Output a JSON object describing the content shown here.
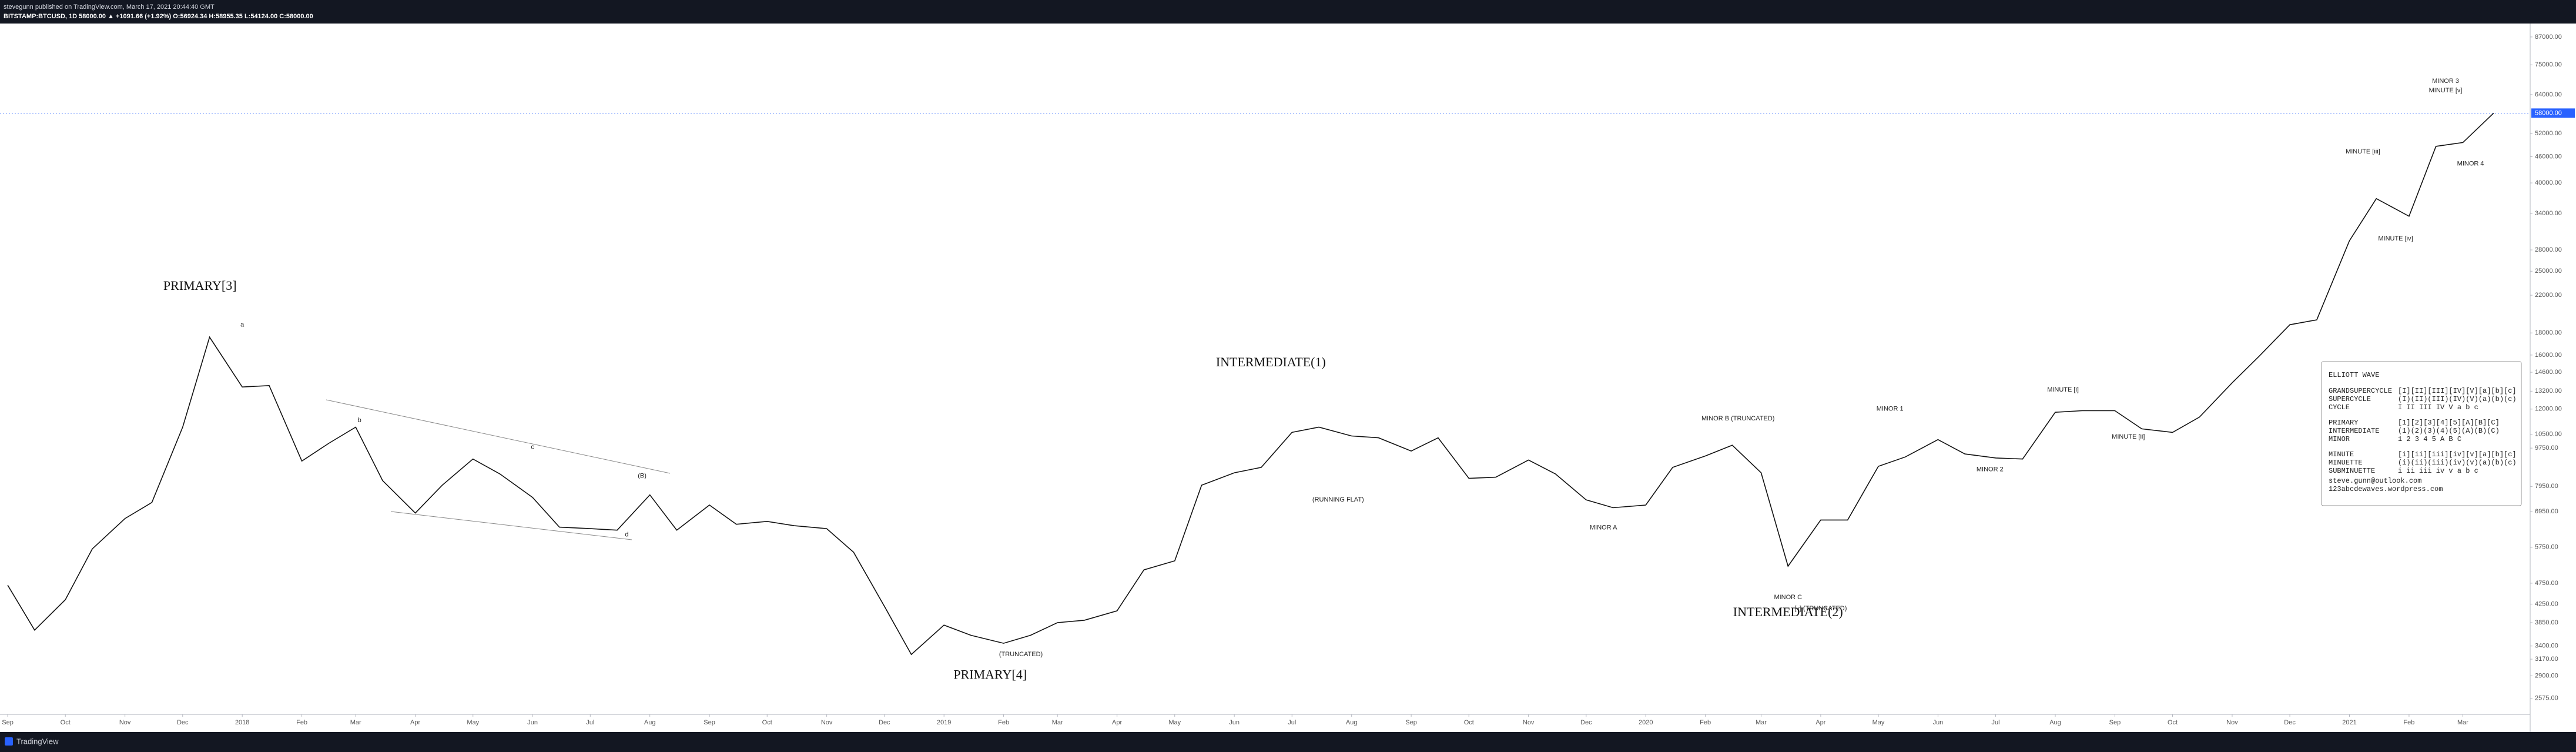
{
  "header": {
    "publisher": "stevegunn published on TradingView.com, March 17, 2021 20:44:40 GMT",
    "symbol_line": "BITSTAMP:BTCUSD, 1D  58000.00 ▲ +1091.66 (+1.92%) O:56924.34 H:58955.35 L:54124.00 C:58000.00"
  },
  "footer": {
    "brand": "TradingView"
  },
  "chart_data": {
    "type": "line",
    "log_scale": true,
    "color": "#111111",
    "x": [
      "2017-09-01",
      "2017-09-15",
      "2017-10-01",
      "2017-10-15",
      "2017-11-01",
      "2017-11-15",
      "2017-12-01",
      "2017-12-15",
      "2018-01-01",
      "2018-01-15",
      "2018-02-01",
      "2018-02-15",
      "2018-03-01",
      "2018-03-15",
      "2018-04-01",
      "2018-04-15",
      "2018-05-01",
      "2018-05-15",
      "2018-06-01",
      "2018-06-15",
      "2018-07-01",
      "2018-07-15",
      "2018-08-01",
      "2018-08-15",
      "2018-09-01",
      "2018-09-15",
      "2018-10-01",
      "2018-10-15",
      "2018-11-01",
      "2018-11-15",
      "2018-12-01",
      "2018-12-15",
      "2019-01-01",
      "2019-01-15",
      "2019-02-01",
      "2019-02-15",
      "2019-03-01",
      "2019-03-15",
      "2019-04-01",
      "2019-04-15",
      "2019-05-01",
      "2019-05-15",
      "2019-06-01",
      "2019-06-15",
      "2019-07-01",
      "2019-07-15",
      "2019-08-01",
      "2019-08-15",
      "2019-09-01",
      "2019-09-15",
      "2019-10-01",
      "2019-10-15",
      "2019-11-01",
      "2019-11-15",
      "2019-12-01",
      "2019-12-15",
      "2020-01-01",
      "2020-01-15",
      "2020-02-01",
      "2020-02-15",
      "2020-03-01",
      "2020-03-15",
      "2020-04-01",
      "2020-04-15",
      "2020-05-01",
      "2020-05-15",
      "2020-06-01",
      "2020-06-15",
      "2020-07-01",
      "2020-07-15",
      "2020-08-01",
      "2020-08-15",
      "2020-09-01",
      "2020-09-15",
      "2020-10-01",
      "2020-10-15",
      "2020-11-01",
      "2020-11-15",
      "2020-12-01",
      "2020-12-15",
      "2021-01-01",
      "2021-01-15",
      "2021-02-01",
      "2021-02-15",
      "2021-03-01",
      "2021-03-17"
    ],
    "series": [
      {
        "name": "BITSTAMP:BTCUSD",
        "color": "#111111",
        "values": [
          4700,
          3700,
          4350,
          5700,
          6700,
          7300,
          10900,
          17600,
          13500,
          13600,
          9100,
          10000,
          10900,
          8200,
          6900,
          8000,
          9200,
          8500,
          7500,
          6400,
          6350,
          6300,
          7600,
          6300,
          7200,
          6500,
          6600,
          6450,
          6350,
          5600,
          4200,
          3250,
          3800,
          3600,
          3450,
          3600,
          3850,
          3900,
          4100,
          5100,
          5350,
          8000,
          8550,
          8800,
          10600,
          10900,
          10400,
          10300,
          9600,
          10300,
          8300,
          8350,
          9150,
          8500,
          7400,
          7100,
          7200,
          8800,
          9350,
          9900,
          8550,
          5200,
          6650,
          6650,
          8850,
          9300,
          10200,
          9450,
          9250,
          9200,
          11800,
          11900,
          11900,
          10800,
          10600,
          11500,
          13800,
          15900,
          18800,
          19300,
          29400,
          36800,
          33500,
          48600,
          49600,
          58000
        ]
      }
    ],
    "xlim": [
      "2017-08-28",
      "2021-04-05"
    ],
    "xticks": [
      {
        "value": "2017-09-01",
        "label": "Sep"
      },
      {
        "value": "2017-10-01",
        "label": "Oct"
      },
      {
        "value": "2017-11-01",
        "label": "Nov"
      },
      {
        "value": "2017-12-01",
        "label": "Dec"
      },
      {
        "value": "2018-01-01",
        "label": "2018"
      },
      {
        "value": "2018-02-01",
        "label": "Feb"
      },
      {
        "value": "2018-03-01",
        "label": "Mar"
      },
      {
        "value": "2018-04-01",
        "label": "Apr"
      },
      {
        "value": "2018-05-01",
        "label": "May"
      },
      {
        "value": "2018-06-01",
        "label": "Jun"
      },
      {
        "value": "2018-07-01",
        "label": "Jul"
      },
      {
        "value": "2018-08-01",
        "label": "Aug"
      },
      {
        "value": "2018-09-01",
        "label": "Sep"
      },
      {
        "value": "2018-10-01",
        "label": "Oct"
      },
      {
        "value": "2018-11-01",
        "label": "Nov"
      },
      {
        "value": "2018-12-01",
        "label": "Dec"
      },
      {
        "value": "2019-01-01",
        "label": "2019"
      },
      {
        "value": "2019-02-01",
        "label": "Feb"
      },
      {
        "value": "2019-03-01",
        "label": "Mar"
      },
      {
        "value": "2019-04-01",
        "label": "Apr"
      },
      {
        "value": "2019-05-01",
        "label": "May"
      },
      {
        "value": "2019-06-01",
        "label": "Jun"
      },
      {
        "value": "2019-07-01",
        "label": "Jul"
      },
      {
        "value": "2019-08-01",
        "label": "Aug"
      },
      {
        "value": "2019-09-01",
        "label": "Sep"
      },
      {
        "value": "2019-10-01",
        "label": "Oct"
      },
      {
        "value": "2019-11-01",
        "label": "Nov"
      },
      {
        "value": "2019-12-01",
        "label": "Dec"
      },
      {
        "value": "2020-01-01",
        "label": "2020"
      },
      {
        "value": "2020-02-01",
        "label": "Feb"
      },
      {
        "value": "2020-03-01",
        "label": "Mar"
      },
      {
        "value": "2020-04-01",
        "label": "Apr"
      },
      {
        "value": "2020-05-01",
        "label": "May"
      },
      {
        "value": "2020-06-01",
        "label": "Jun"
      },
      {
        "value": "2020-07-01",
        "label": "Jul"
      },
      {
        "value": "2020-08-01",
        "label": "Aug"
      },
      {
        "value": "2020-09-01",
        "label": "Sep"
      },
      {
        "value": "2020-10-01",
        "label": "Oct"
      },
      {
        "value": "2020-11-01",
        "label": "Nov"
      },
      {
        "value": "2020-12-01",
        "label": "Dec"
      },
      {
        "value": "2021-01-01",
        "label": "2021"
      },
      {
        "value": "2021-02-01",
        "label": "Feb"
      },
      {
        "value": "2021-03-01",
        "label": "Mar"
      }
    ],
    "ylim": [
      2400,
      92000
    ],
    "yticks": [
      {
        "value": 87000,
        "label": "87000.00"
      },
      {
        "value": 75000,
        "label": "75000.00"
      },
      {
        "value": 64000,
        "label": "64000.00"
      },
      {
        "value": 52000,
        "label": "52000.00"
      },
      {
        "value": 46000,
        "label": "46000.00"
      },
      {
        "value": 40000,
        "label": "40000.00"
      },
      {
        "value": 34000,
        "label": "34000.00"
      },
      {
        "value": 28000,
        "label": "28000.00"
      },
      {
        "value": 25000,
        "label": "25000.00"
      },
      {
        "value": 22000,
        "label": "22000.00"
      },
      {
        "value": 18000,
        "label": "18000.00"
      },
      {
        "value": 16000,
        "label": "16000.00"
      },
      {
        "value": 14600,
        "label": "14600.00"
      },
      {
        "value": 13200,
        "label": "13200.00"
      },
      {
        "value": 12000,
        "label": "12000.00"
      },
      {
        "value": 10500,
        "label": "10500.00"
      },
      {
        "value": 9750,
        "label": "9750.00"
      },
      {
        "value": 7950,
        "label": "7950.00"
      },
      {
        "value": 6950,
        "label": "6950.00"
      },
      {
        "value": 5750,
        "label": "5750.00"
      },
      {
        "value": 4750,
        "label": "4750.00"
      },
      {
        "value": 4250,
        "label": "4250.00"
      },
      {
        "value": 3850,
        "label": "3850.00"
      },
      {
        "value": 3400,
        "label": "3400.00"
      },
      {
        "value": 3170,
        "label": "3170.00"
      },
      {
        "value": 2900,
        "label": "2900.00"
      },
      {
        "value": 2575,
        "label": "2575.00"
      }
    ],
    "last_price": {
      "value": 58000,
      "label": "58000.00"
    },
    "major_labels": [
      {
        "text": "PRIMARY[3]",
        "x": "2017-12-10",
        "y": 23000
      },
      {
        "text": "PRIMARY[4]",
        "x": "2019-01-25",
        "y": 2900
      },
      {
        "text": "INTERMEDIATE(1)",
        "x": "2019-06-20",
        "y": 15300
      },
      {
        "text": "INTERMEDIATE(2)",
        "x": "2020-03-15",
        "y": 4050
      }
    ],
    "wave_labels": [
      {
        "text": "a",
        "x": "2018-01-01",
        "y": 18800
      },
      {
        "text": "b",
        "x": "2018-03-03",
        "y": 11300
      },
      {
        "text": "c",
        "x": "2018-06-01",
        "y": 9800
      },
      {
        "text": "d",
        "x": "2018-07-20",
        "y": 6150
      },
      {
        "text": "(B)",
        "x": "2018-07-28",
        "y": 8400
      },
      {
        "text": "(RUNNING FLAT)",
        "x": "2019-07-25",
        "y": 7400
      },
      {
        "text": "(TRUNCATED)",
        "x": "2019-02-10",
        "y": 3250
      },
      {
        "text": "[v] (TRUNCATED)",
        "x": "2020-04-01",
        "y": 4150
      },
      {
        "text": "MINOR C",
        "x": "2020-03-15",
        "y": 4400
      },
      {
        "text": "MINOR A",
        "x": "2019-12-10",
        "y": 6380
      },
      {
        "text": "MINOR B (TRUNCATED)",
        "x": "2020-02-18",
        "y": 11400
      },
      {
        "text": "MINOR 1",
        "x": "2020-05-07",
        "y": 12000
      },
      {
        "text": "MINOR 2",
        "x": "2020-06-28",
        "y": 8700
      },
      {
        "text": "MINUTE [i]",
        "x": "2020-08-05",
        "y": 13300
      },
      {
        "text": "MINUTE [ii]",
        "x": "2020-09-08",
        "y": 10350
      },
      {
        "text": "MINUTE [iii]",
        "x": "2021-01-08",
        "y": 47200
      },
      {
        "text": "MINUTE [iv]",
        "x": "2021-01-25",
        "y": 29700
      },
      {
        "text": "MINOR 3",
        "x": "2021-02-20",
        "y": 68700
      },
      {
        "text": "MINUTE [v]",
        "x": "2021-02-20",
        "y": 65400
      },
      {
        "text": "MINOR 4",
        "x": "2021-03-05",
        "y": 44300
      }
    ]
  },
  "elliott_legend": {
    "title": "ELLIOTT WAVE",
    "rows": [
      [
        "GRANDSUPERCYCLE",
        "[I][II][III][IV][V][a][b][c]"
      ],
      [
        "SUPERCYCLE",
        "(I)(II)(III)(IV)(V)(a)(b)(c)"
      ],
      [
        "CYCLE",
        "I  II  III  IV  V  a  b  c"
      ],
      [
        "PRIMARY",
        "[1][2][3][4][5][A][B][C]"
      ],
      [
        "INTERMEDIATE",
        "(1)(2)(3)(4)(5)(A)(B)(C)"
      ],
      [
        "MINOR",
        "1  2  3  4  5  A  B  C"
      ],
      [
        "MINUTE",
        "[i][ii][iii][iv][v][a][b][c]"
      ],
      [
        "MINUETTE",
        "(i)(ii)(iii)(iv)(v)(a)(b)(c)"
      ],
      [
        "SUBMINUETTE",
        "i  ii  iii  iv  v  a  b  c"
      ]
    ],
    "contact": [
      "steve.gunn@outlook.com",
      "123abcdewaves.wordpress.com"
    ]
  }
}
